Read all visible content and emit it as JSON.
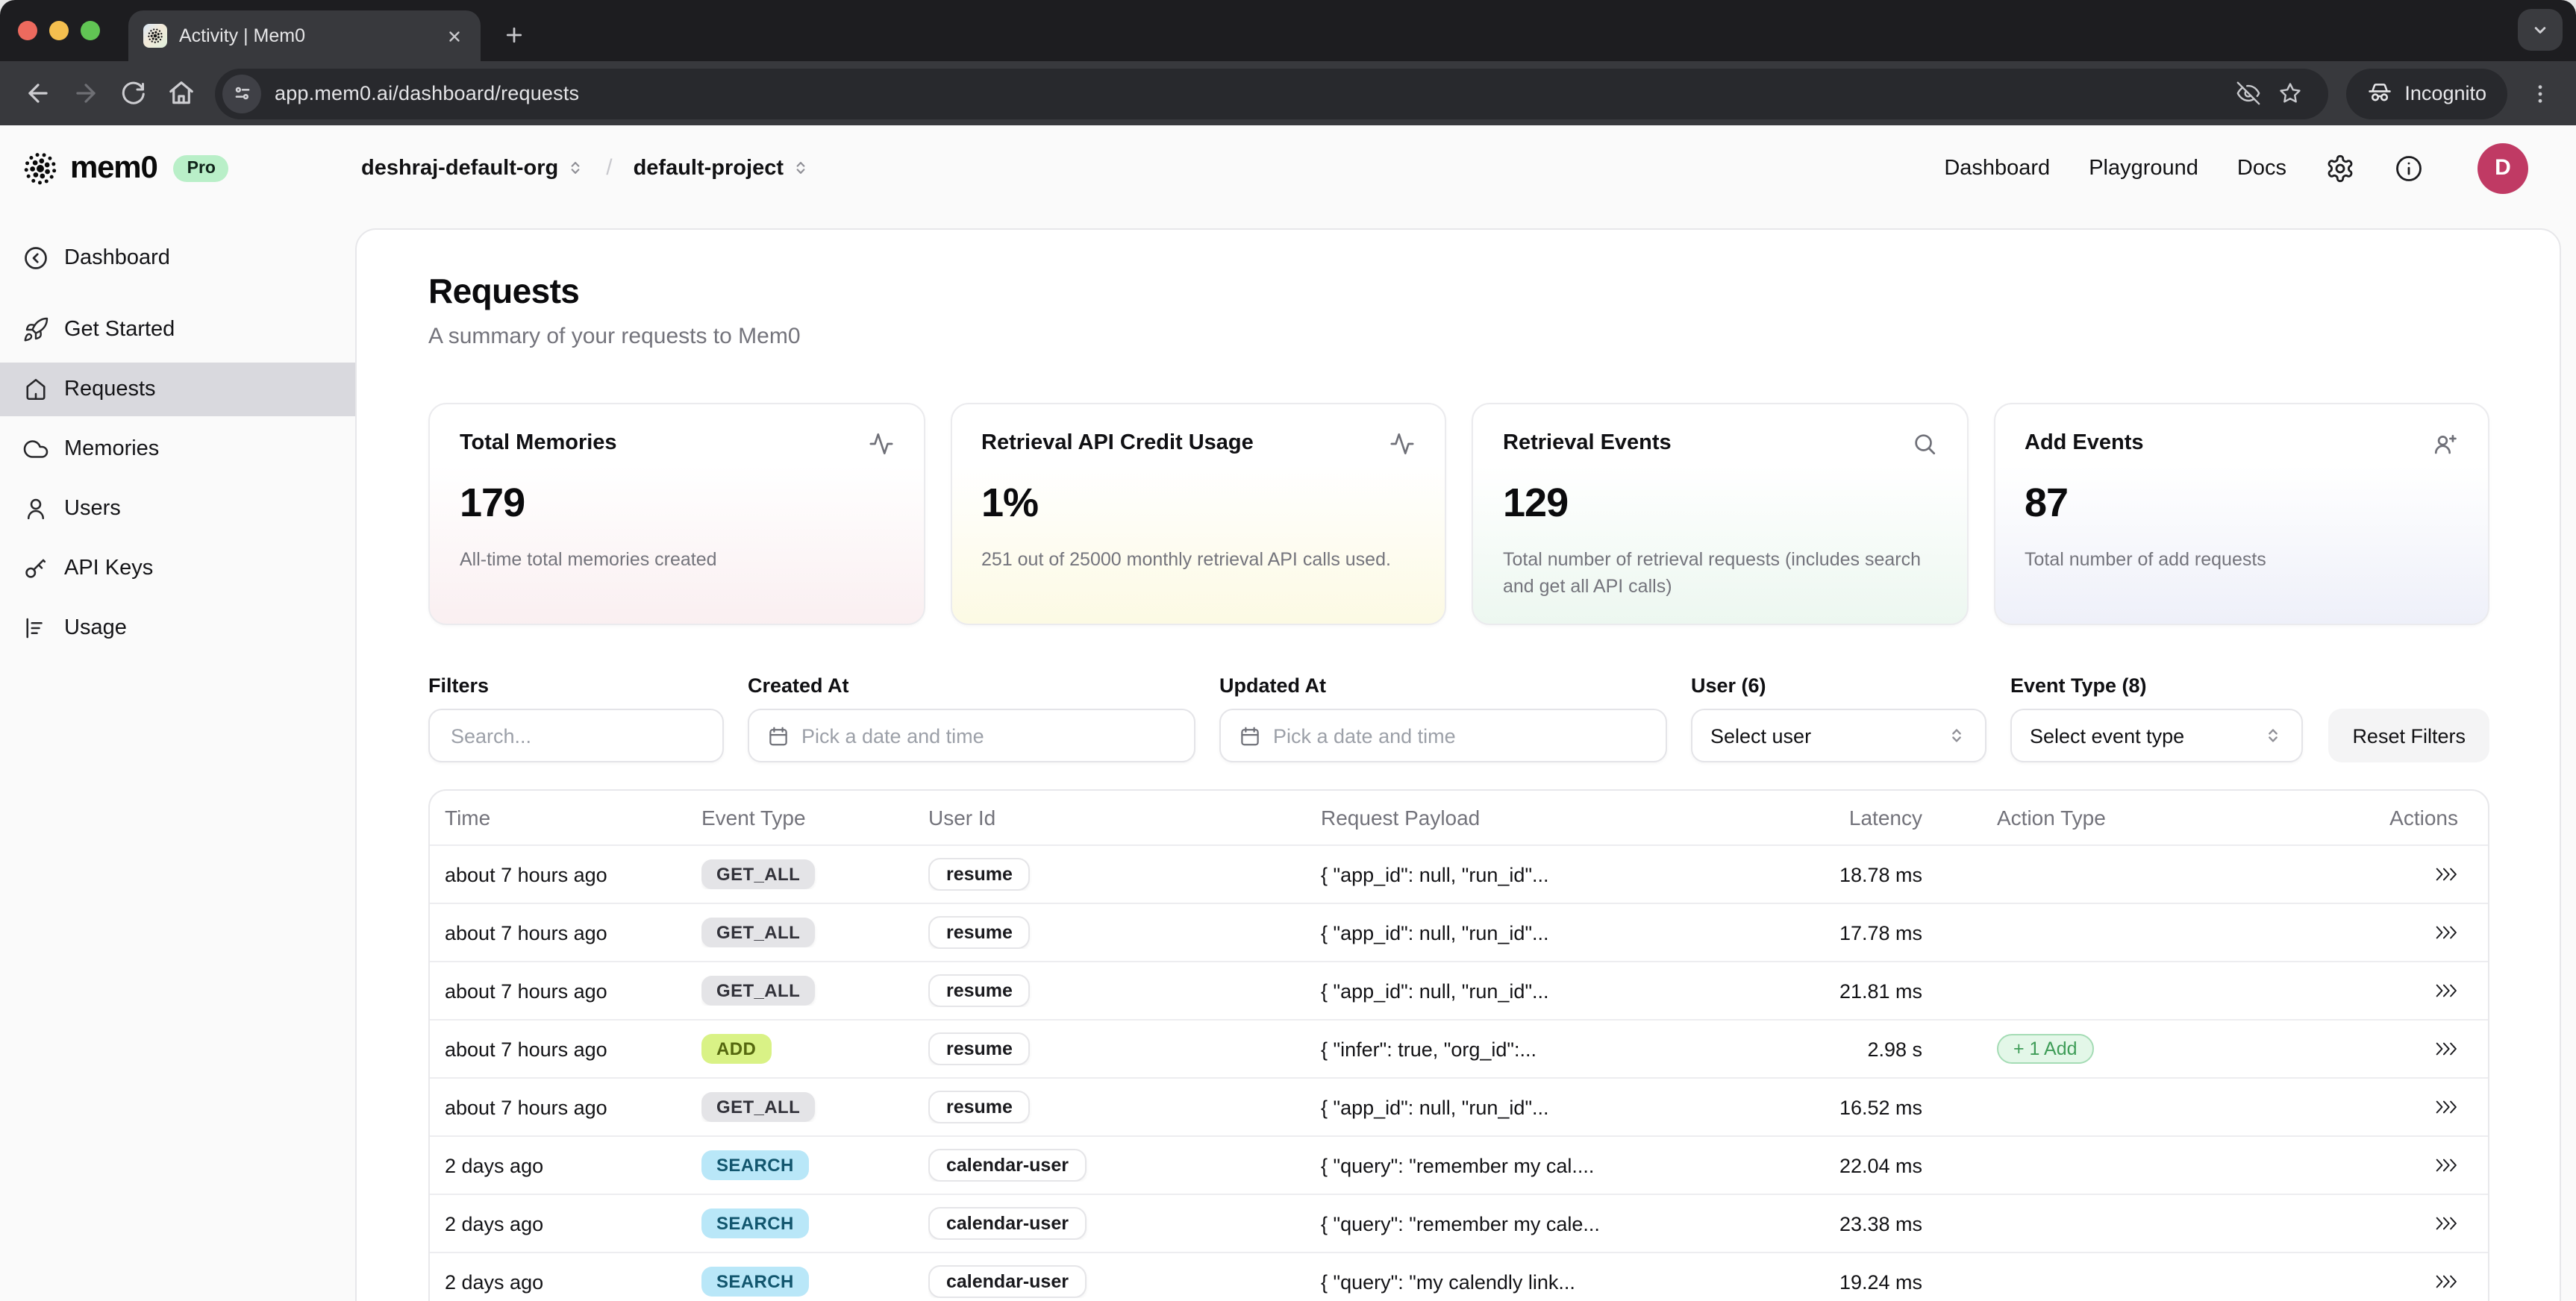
{
  "browser": {
    "tab_title": "Activity | Mem0",
    "url": "app.mem0.ai/dashboard/requests",
    "incognito_label": "Incognito"
  },
  "header": {
    "brand": "mem0",
    "plan_badge": "Pro",
    "org": "deshraj-default-org",
    "separator": "/",
    "project": "default-project",
    "nav": [
      "Dashboard",
      "Playground",
      "Docs"
    ],
    "avatar_initial": "D",
    "avatar_color": "#c03a64",
    "pro_badge_bg": "#b9efc8"
  },
  "sidebar": {
    "items": [
      {
        "label": "Dashboard",
        "icon": "arrow-left-circle"
      },
      {
        "label": "Get Started",
        "icon": "rocket"
      },
      {
        "label": "Requests",
        "icon": "home",
        "active": true
      },
      {
        "label": "Memories",
        "icon": "cloud"
      },
      {
        "label": "Users",
        "icon": "user"
      },
      {
        "label": "API Keys",
        "icon": "key"
      },
      {
        "label": "Usage",
        "icon": "bar-chart"
      }
    ],
    "active_bg": "#d9d9de"
  },
  "page": {
    "title": "Requests",
    "subtitle": "A summary of your requests to Mem0"
  },
  "stats": [
    {
      "title": "Total Memories",
      "icon": "activity",
      "value": "179",
      "description": "All-time total memories created",
      "tint": "#f9edef"
    },
    {
      "title": "Retrieval API Credit Usage",
      "icon": "activity",
      "value": "1%",
      "description": "251 out of 25000 monthly retrieval API calls used.",
      "tint": "#fcf9e0"
    },
    {
      "title": "Retrieval Events",
      "icon": "search",
      "value": "129",
      "description": "Total number of retrieval requests (includes search and get all API calls)",
      "tint": "#eaf6ee"
    },
    {
      "title": "Add Events",
      "icon": "user-plus",
      "value": "87",
      "description": "Total number of add requests",
      "tint": "#eceef8"
    }
  ],
  "filters": {
    "filters_label": "Filters",
    "search_placeholder": "Search...",
    "created_label": "Created At",
    "updated_label": "Updated At",
    "date_placeholder": "Pick a date and time",
    "user_label": "User (6)",
    "user_value": "Select user",
    "event_label": "Event Type (8)",
    "event_value": "Select event type",
    "reset_label": "Reset Filters"
  },
  "table": {
    "headers": [
      "Time",
      "Event Type",
      "User Id",
      "Request Payload",
      "Latency",
      "Action Type",
      "Actions"
    ],
    "badge_colors": {
      "GET_ALL": "#e4e4e7",
      "ADD": "#d9f286",
      "SEARCH": "#b9e7f8",
      "add_action_pill": "#e3f7e8"
    },
    "rows": [
      {
        "time": "about 7 hours ago",
        "event_type": "GET_ALL",
        "user_id": "resume",
        "payload": "{ \"app_id\": null, \"run_id\"...",
        "latency": "18.78 ms",
        "action": ""
      },
      {
        "time": "about 7 hours ago",
        "event_type": "GET_ALL",
        "user_id": "resume",
        "payload": "{ \"app_id\": null, \"run_id\"...",
        "latency": "17.78 ms",
        "action": ""
      },
      {
        "time": "about 7 hours ago",
        "event_type": "GET_ALL",
        "user_id": "resume",
        "payload": "{ \"app_id\": null, \"run_id\"...",
        "latency": "21.81 ms",
        "action": ""
      },
      {
        "time": "about 7 hours ago",
        "event_type": "ADD",
        "user_id": "resume",
        "payload": "{ \"infer\": true, \"org_id\":...",
        "latency": "2.98 s",
        "action": "+ 1 Add"
      },
      {
        "time": "about 7 hours ago",
        "event_type": "GET_ALL",
        "user_id": "resume",
        "payload": "{ \"app_id\": null, \"run_id\"...",
        "latency": "16.52 ms",
        "action": ""
      },
      {
        "time": "2 days ago",
        "event_type": "SEARCH",
        "user_id": "calendar-user",
        "payload": "{ \"query\": \"remember my cal....",
        "latency": "22.04 ms",
        "action": ""
      },
      {
        "time": "2 days ago",
        "event_type": "SEARCH",
        "user_id": "calendar-user",
        "payload": "{ \"query\": \"remember my cale...",
        "latency": "23.38 ms",
        "action": ""
      },
      {
        "time": "2 days ago",
        "event_type": "SEARCH",
        "user_id": "calendar-user",
        "payload": "{ \"query\": \"my calendly link...",
        "latency": "19.24 ms",
        "action": ""
      }
    ]
  }
}
